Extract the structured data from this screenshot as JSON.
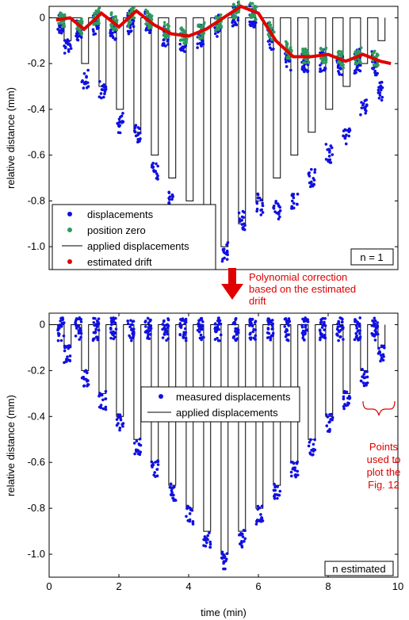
{
  "colors": {
    "measured": "#1010e0",
    "position_zero": "#2e9b5a",
    "applied": "#000000",
    "drift": "#e00000",
    "annotation": "#e00000"
  },
  "chart_data": [
    {
      "type": "scatter",
      "title": "",
      "xlabel": "",
      "ylabel": "relative distance (mm)",
      "xlim": [
        0,
        10
      ],
      "ylim": [
        -1.1,
        0.05
      ],
      "yticks": [
        "0",
        "-0.2",
        "-0.4",
        "-0.6",
        "-0.8",
        "-1.0"
      ],
      "ytick_values": [
        0,
        -0.2,
        -0.4,
        -0.6,
        -0.8,
        -1.0
      ],
      "legend_position": "bottom-left",
      "legend": [
        "displacements",
        "position zero",
        "applied displacements",
        "estimated drift"
      ],
      "annotation_box": "n  = 1",
      "series": [
        {
          "name": "displacements",
          "kind": "points",
          "description_steps": true
        },
        {
          "name": "position zero",
          "kind": "points"
        },
        {
          "name": "applied displacements",
          "kind": "step",
          "levels": [
            -0.1,
            -0.2,
            -0.3,
            -0.4,
            -0.5,
            -0.6,
            -0.7,
            -0.8,
            -0.9,
            -1.0,
            -0.9,
            -0.8,
            -0.7,
            -0.6,
            -0.5,
            -0.4,
            -0.3,
            -0.2,
            -0.1
          ]
        },
        {
          "name": "estimated drift",
          "kind": "line",
          "x": [
            0.2,
            0.6,
            1.0,
            1.5,
            2.0,
            2.5,
            3.0,
            3.5,
            4.0,
            4.5,
            5.0,
            5.5,
            6.0,
            6.5,
            7.0,
            7.5,
            8.0,
            8.5,
            9.0,
            9.5,
            9.8
          ],
          "y": [
            -0.01,
            0.0,
            -0.05,
            0.02,
            -0.04,
            0.03,
            -0.03,
            -0.07,
            -0.08,
            -0.05,
            0.0,
            0.05,
            0.02,
            -0.1,
            -0.17,
            -0.17,
            -0.16,
            -0.19,
            -0.16,
            -0.19,
            -0.2
          ]
        }
      ]
    },
    {
      "type": "scatter",
      "title": "",
      "xlabel": "time (min)",
      "ylabel": "relative distance (mm)",
      "xlim": [
        0,
        10
      ],
      "ylim": [
        -1.1,
        0.05
      ],
      "xticks": [
        "0",
        "2",
        "4",
        "6",
        "8",
        "10"
      ],
      "xtick_values": [
        0,
        2,
        4,
        6,
        8,
        10
      ],
      "yticks": [
        "0",
        "-0.2",
        "-0.4",
        "-0.6",
        "-0.8",
        "-1.0"
      ],
      "ytick_values": [
        0,
        -0.2,
        -0.4,
        -0.6,
        -0.8,
        -1.0
      ],
      "legend_position": "center",
      "legend": [
        "measured displacements",
        "applied displacements"
      ],
      "annotation_box": "n estimated",
      "series": [
        {
          "name": "measured displacements",
          "kind": "points"
        },
        {
          "name": "applied displacements",
          "kind": "step",
          "levels": [
            -0.1,
            -0.2,
            -0.3,
            -0.4,
            -0.5,
            -0.6,
            -0.7,
            -0.8,
            -0.9,
            -1.0,
            -0.9,
            -0.8,
            -0.7,
            -0.6,
            -0.5,
            -0.4,
            -0.3,
            -0.2,
            -0.1
          ]
        }
      ]
    }
  ],
  "annotations": {
    "correction_line1": "Polynomial correction",
    "correction_line2": "based on the estimated",
    "correction_line3": "drift",
    "points_line1": "Points",
    "points_line2": "used to",
    "points_line3": "plot the",
    "points_line4": "Fig. 12"
  }
}
